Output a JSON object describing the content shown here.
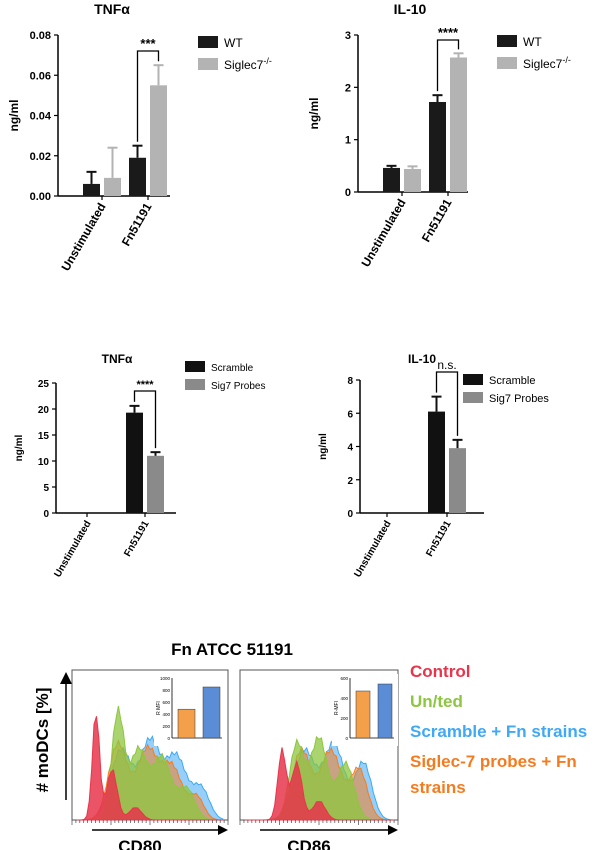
{
  "chart_data": [
    {
      "type": "bar",
      "title": "TNFα",
      "ylabel": "ng/ml",
      "xlabel": "",
      "ylim": [
        0,
        0.08
      ],
      "yticks": [
        "0.00",
        "0.02",
        "0.04",
        "0.06",
        "0.08"
      ],
      "categories": [
        "Unstimulated",
        "Fn51191"
      ],
      "series": [
        {
          "name": "WT",
          "values": [
            0.006,
            0.019
          ],
          "errors": [
            0.006,
            0.006
          ],
          "color": "#1a1a1a"
        },
        {
          "name": "Siglec7",
          "name_sup": "-/-",
          "values": [
            0.009,
            0.055
          ],
          "errors": [
            0.015,
            0.01
          ],
          "color": "#b3b3b3"
        }
      ],
      "annotations": [
        {
          "category": 1,
          "text": "***"
        }
      ],
      "legend": "top-right"
    },
    {
      "type": "bar",
      "title": "IL-10",
      "ylabel": "ng/ml",
      "xlabel": "",
      "ylim": [
        0,
        3
      ],
      "yticks": [
        "0",
        "1",
        "2",
        "3"
      ],
      "categories": [
        "Unstimulated",
        "Fn51191"
      ],
      "series": [
        {
          "name": "WT",
          "values": [
            0.46,
            1.72
          ],
          "errors": [
            0.04,
            0.13
          ],
          "color": "#1a1a1a"
        },
        {
          "name": "Siglec7",
          "name_sup": "-/-",
          "values": [
            0.44,
            2.57
          ],
          "errors": [
            0.05,
            0.08
          ],
          "color": "#b3b3b3"
        }
      ],
      "annotations": [
        {
          "category": 1,
          "text": "****"
        }
      ],
      "legend": "top-right"
    },
    {
      "type": "bar",
      "title": "TNFα",
      "ylabel": "ng/ml",
      "xlabel": "",
      "ylim": [
        0,
        25
      ],
      "yticks": [
        "0",
        "5",
        "10",
        "15",
        "20",
        "25"
      ],
      "categories": [
        "Unstimulated",
        "Fn51191"
      ],
      "series": [
        {
          "name": "Scramble",
          "values": [
            0,
            19.3
          ],
          "errors": [
            0,
            1.3
          ],
          "color": "#111111"
        },
        {
          "name": "Sig7 Probes",
          "values": [
            0,
            11.0
          ],
          "errors": [
            0,
            0.7
          ],
          "color": "#8a8a8a"
        }
      ],
      "annotations": [
        {
          "category": 1,
          "text": "****"
        }
      ],
      "legend": "top-right"
    },
    {
      "type": "bar",
      "title": "IL-10",
      "ylabel": "ng/ml",
      "xlabel": "",
      "ylim": [
        0,
        8
      ],
      "yticks": [
        "0",
        "2",
        "4",
        "6",
        "8"
      ],
      "categories": [
        "Unstimulated",
        "Fn51191"
      ],
      "series": [
        {
          "name": "Scramble",
          "values": [
            0,
            6.1
          ],
          "errors": [
            0,
            0.9
          ],
          "color": "#111111"
        },
        {
          "name": "Sig7 Probes",
          "values": [
            0,
            3.9
          ],
          "errors": [
            0,
            0.5
          ],
          "color": "#8a8a8a"
        }
      ],
      "annotations": [
        {
          "category": 1,
          "text": "n.s."
        }
      ],
      "legend": "top-right"
    }
  ],
  "flow": {
    "title": "Fn ATCC 51191",
    "ylabel": "# moDCs [%]",
    "legend": [
      {
        "text": "Control",
        "color": "#e8354b"
      },
      {
        "text": "Un/ted",
        "color": "#8dc63f"
      },
      {
        "text": "Scramble + Fn strains",
        "color": "#3fa9f5"
      },
      {
        "text": "Siglec-7 probes + Fn strains",
        "color": "#f47c20"
      }
    ],
    "panels": [
      {
        "xlabel": "CD80",
        "inset": {
          "ylabel": "R MFI",
          "values": [
            480,
            850
          ],
          "ymax": 1000,
          "yticks": [
            "0",
            "200",
            "400",
            "600",
            "800",
            "1000"
          ],
          "colors": [
            "#f4a04a",
            "#5b8dd6"
          ]
        }
      },
      {
        "xlabel": "CD86",
        "inset": {
          "ylabel": "R-MFI",
          "values": [
            470,
            540
          ],
          "ymax": 600,
          "yticks": [
            "0",
            "200",
            "400",
            "600"
          ],
          "colors": [
            "#f4a04a",
            "#5b8dd6"
          ]
        }
      }
    ]
  }
}
